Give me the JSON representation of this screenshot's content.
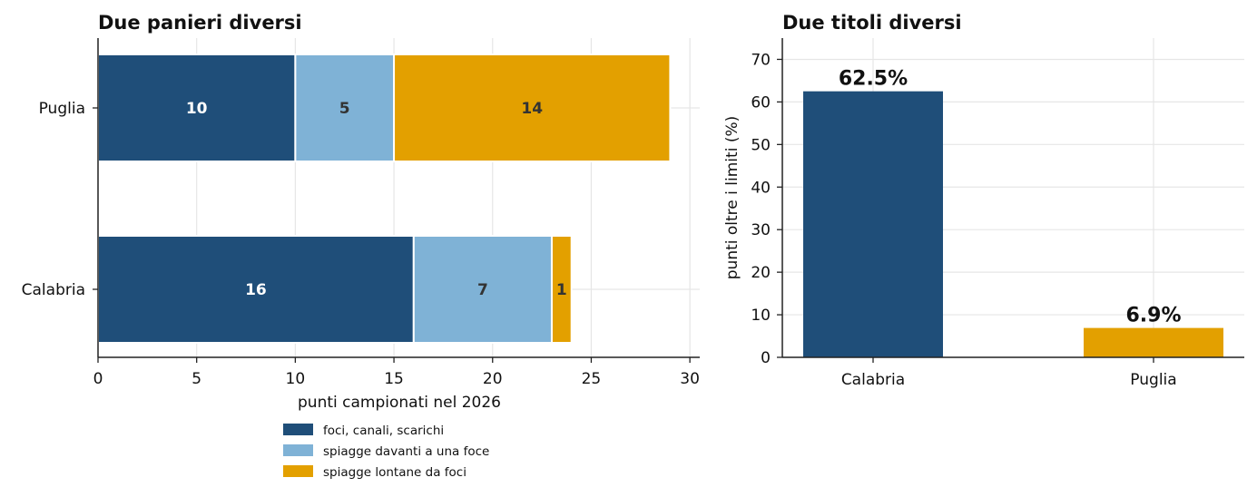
{
  "chart_data": [
    {
      "type": "bar",
      "orientation": "horizontal",
      "stacked": true,
      "title": "Due panieri diversi",
      "xlabel": "punti campionati nel 2026",
      "ylabel": "",
      "categories": [
        "Calabria",
        "Puglia"
      ],
      "xlim": [
        0,
        30.5
      ],
      "xticks": [
        "0",
        "5",
        "10",
        "15",
        "20",
        "25",
        "30"
      ],
      "grid": true,
      "legend_position": "bottom",
      "series": [
        {
          "name": "foci, canali, scarichi",
          "color": "#1f4e79",
          "label_color": "#ffffff",
          "values": [
            16,
            10
          ]
        },
        {
          "name": "spiagge davanti a una foce",
          "color": "#7fb2d6",
          "label_color": "#333333",
          "values": [
            7,
            5
          ]
        },
        {
          "name": "spiagge lontane da foci",
          "color": "#e3a000",
          "label_color": "#333333",
          "values": [
            1,
            14
          ]
        }
      ]
    },
    {
      "type": "bar",
      "orientation": "vertical",
      "title": "Due titoli diversi",
      "xlabel": "",
      "ylabel": "punti oltre i limiti (%)",
      "categories": [
        "Calabria",
        "Puglia"
      ],
      "values": [
        62.5,
        6.9
      ],
      "value_labels": [
        "62.5%",
        "6.9%"
      ],
      "colors": [
        "#1f4e79",
        "#e3a000"
      ],
      "ylim": [
        0,
        75
      ],
      "yticks": [
        "0",
        "10",
        "20",
        "30",
        "40",
        "50",
        "60",
        "70"
      ],
      "grid": true
    }
  ]
}
